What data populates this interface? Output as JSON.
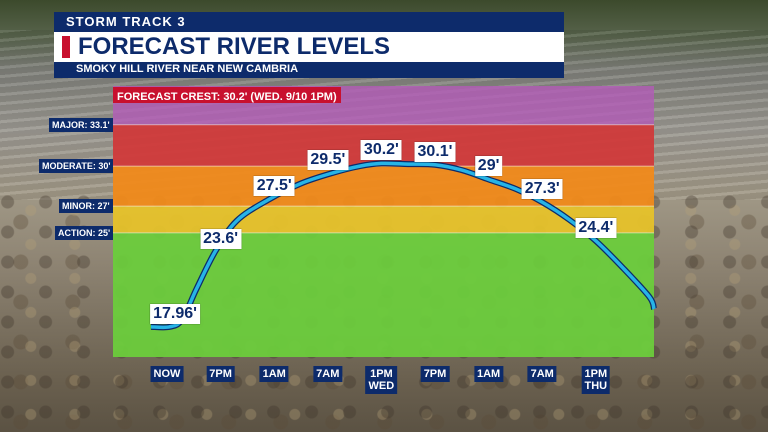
{
  "header": {
    "brand": "STORM TRACK 3",
    "title": "FORECAST RIVER LEVELS",
    "subtitle": "SMOKY HILL RIVER NEAR NEW CAMBRIA"
  },
  "crest_label": "FORECAST CREST: 30.2' (WED. 9/10 1PM)",
  "colors": {
    "major": "#b45ab8",
    "moderate": "#d03a3a",
    "minor": "#f08a1a",
    "action": "#e6c22a",
    "normal": "#6ccc3c",
    "line": "#27b4e6",
    "header_navy": "#0d2b6b",
    "accent_red": "#c8102e"
  },
  "chart_data": {
    "type": "line",
    "title": "FORECAST RIVER LEVELS",
    "subtitle": "SMOKY HILL RIVER NEAR NEW CAMBRIA",
    "x_ticks": [
      "NOW",
      "7PM",
      "1AM",
      "7AM",
      "1PM WED",
      "7PM",
      "1AM",
      "7AM",
      "1PM THU"
    ],
    "ylim": [
      15.7,
      36
    ],
    "flood_stages": [
      {
        "name": "MAJOR",
        "label": "MAJOR: 33.1'",
        "value": 33.1
      },
      {
        "name": "MODERATE",
        "label": "MODERATE: 30'",
        "value": 30
      },
      {
        "name": "MINOR",
        "label": "MINOR: 27'",
        "value": 27
      },
      {
        "name": "ACTION",
        "label": "ACTION: 25'",
        "value": 25
      }
    ],
    "series": [
      {
        "values": [
          {
            "x": -0.3,
            "y": 17.96
          },
          {
            "x": 0.05,
            "y": 17.96
          },
          {
            "x": 0.28,
            "y": 18.5
          },
          {
            "x": 0.55,
            "y": 20.8
          },
          {
            "x": 0.9,
            "y": 23.6
          },
          {
            "x": 1.3,
            "y": 25.9
          },
          {
            "x": 1.9,
            "y": 27.5
          },
          {
            "x": 2.5,
            "y": 28.7
          },
          {
            "x": 3.1,
            "y": 29.5
          },
          {
            "x": 3.6,
            "y": 30.0
          },
          {
            "x": 4.0,
            "y": 30.2
          },
          {
            "x": 4.5,
            "y": 30.15
          },
          {
            "x": 5.0,
            "y": 30.1
          },
          {
            "x": 5.5,
            "y": 29.7
          },
          {
            "x": 6.0,
            "y": 29.0
          },
          {
            "x": 6.5,
            "y": 28.3
          },
          {
            "x": 7.0,
            "y": 27.3
          },
          {
            "x": 7.5,
            "y": 26.0
          },
          {
            "x": 8.0,
            "y": 24.4
          },
          {
            "x": 8.5,
            "y": 22.4
          },
          {
            "x": 9.0,
            "y": 20.2
          },
          {
            "x": 9.2,
            "y": 19.3
          }
        ]
      }
    ],
    "data_labels": [
      {
        "x": 0.15,
        "y": 17.96,
        "text": "17.96'"
      },
      {
        "x": 1.0,
        "y": 23.6,
        "text": "23.6'"
      },
      {
        "x": 2.0,
        "y": 27.5,
        "text": "27.5'"
      },
      {
        "x": 3.0,
        "y": 29.5,
        "text": "29.5'"
      },
      {
        "x": 4.0,
        "y": 30.2,
        "text": "30.2'"
      },
      {
        "x": 5.0,
        "y": 30.1,
        "text": "30.1'"
      },
      {
        "x": 6.0,
        "y": 29,
        "text": "29'"
      },
      {
        "x": 7.0,
        "y": 27.3,
        "text": "27.3'"
      },
      {
        "x": 8.0,
        "y": 24.4,
        "text": "24.4'"
      }
    ]
  }
}
